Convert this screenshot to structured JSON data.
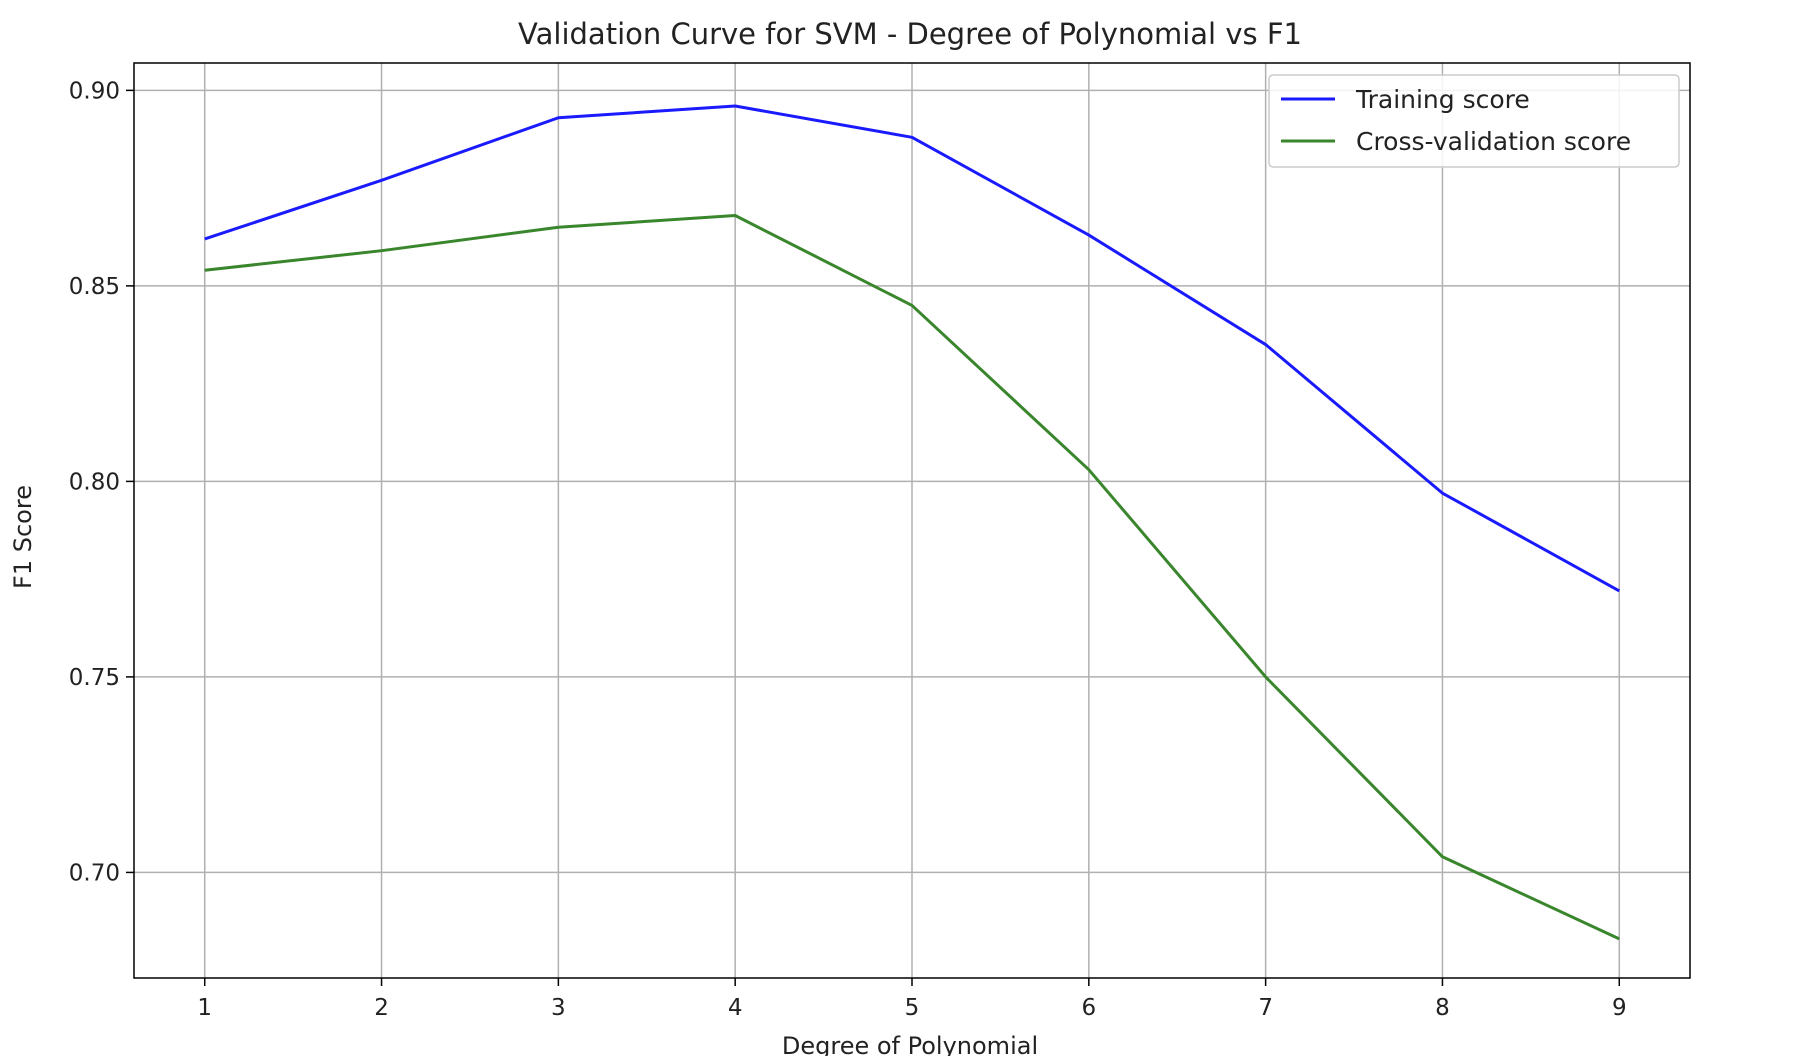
{
  "chart_data": {
    "type": "line",
    "title": "Validation Curve for SVM - Degree of Polynomial vs F1",
    "xlabel": "Degree of Polynomial",
    "ylabel": "F1 Score",
    "x": [
      1,
      2,
      3,
      4,
      5,
      6,
      7,
      8,
      9
    ],
    "xticks": [
      "1",
      "2",
      "3",
      "4",
      "5",
      "6",
      "7",
      "8",
      "9"
    ],
    "yticks": [
      "0.70",
      "0.75",
      "0.80",
      "0.85",
      "0.90"
    ],
    "ytick_values": [
      0.7,
      0.75,
      0.8,
      0.85,
      0.9
    ],
    "xlim": [
      0.6,
      9.4
    ],
    "ylim": [
      0.673,
      0.907
    ],
    "grid": true,
    "legend_position": "top-right",
    "series": [
      {
        "name": "Training score",
        "color": "#1a1aff",
        "values": [
          0.862,
          0.877,
          0.893,
          0.896,
          0.888,
          0.863,
          0.835,
          0.797,
          0.772
        ]
      },
      {
        "name": "Cross-validation score",
        "color": "#3a862d",
        "values": [
          0.854,
          0.859,
          0.865,
          0.868,
          0.845,
          0.803,
          0.75,
          0.704,
          0.683
        ]
      }
    ]
  }
}
